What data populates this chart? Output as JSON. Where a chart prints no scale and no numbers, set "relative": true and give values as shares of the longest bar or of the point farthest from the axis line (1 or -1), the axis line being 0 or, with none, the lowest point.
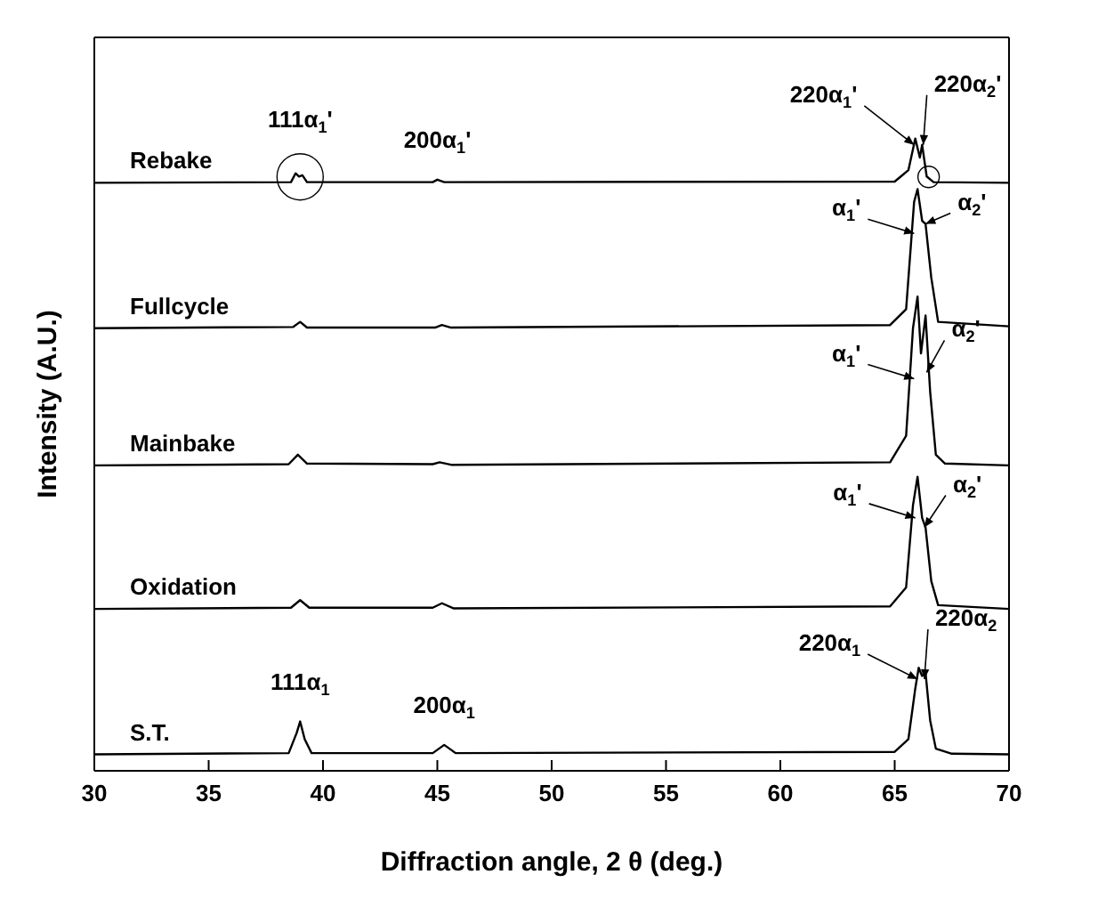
{
  "chart_data": {
    "type": "line",
    "relative": true,
    "xlabel": "Diffraction angle, 2 θ (deg.)",
    "ylabel": "Intensity (A.U.)",
    "xlim": [
      30,
      70
    ],
    "xticks": [
      30,
      35,
      40,
      45,
      50,
      55,
      60,
      65,
      70
    ],
    "marker": "none",
    "line_style": "solid",
    "series": [
      {
        "name": "Rebake",
        "color": "#000000",
        "x": [
          30,
          38.6,
          38.8,
          38.95,
          39.1,
          39.3,
          44.8,
          45.0,
          45.3,
          65.0,
          65.6,
          65.9,
          66.1,
          66.2,
          66.4,
          66.7,
          70
        ],
        "values": [
          0.93,
          0.931,
          0.945,
          0.94,
          0.942,
          0.931,
          0.931,
          0.935,
          0.931,
          0.932,
          0.95,
          1.0,
          0.97,
          0.99,
          0.94,
          0.931,
          0.93
        ]
      },
      {
        "name": "Fullcycle",
        "color": "#000000",
        "x": [
          30,
          38.7,
          39.0,
          39.3,
          44.9,
          45.2,
          45.6,
          64.8,
          65.5,
          65.85,
          66.0,
          66.2,
          66.35,
          66.6,
          66.9,
          70
        ],
        "values": [
          0.7,
          0.702,
          0.71,
          0.701,
          0.701,
          0.705,
          0.701,
          0.705,
          0.73,
          0.9,
          0.92,
          0.87,
          0.865,
          0.78,
          0.71,
          0.703
        ]
      },
      {
        "name": "Mainbake",
        "color": "#000000",
        "x": [
          30,
          38.5,
          38.9,
          39.3,
          44.8,
          45.1,
          45.6,
          64.8,
          65.5,
          65.8,
          66.0,
          66.15,
          66.35,
          66.55,
          66.8,
          67.2,
          70
        ],
        "values": [
          0.483,
          0.485,
          0.5,
          0.486,
          0.485,
          0.488,
          0.484,
          0.488,
          0.53,
          0.7,
          0.75,
          0.66,
          0.72,
          0.6,
          0.5,
          0.486,
          0.483
        ]
      },
      {
        "name": "Oxidation",
        "color": "#000000",
        "x": [
          30,
          38.6,
          39.0,
          39.4,
          44.8,
          45.2,
          45.7,
          64.8,
          65.5,
          65.8,
          66.0,
          66.2,
          66.35,
          66.6,
          66.9,
          70
        ],
        "values": [
          0.256,
          0.258,
          0.27,
          0.258,
          0.258,
          0.265,
          0.257,
          0.26,
          0.29,
          0.42,
          0.465,
          0.4,
          0.385,
          0.3,
          0.262,
          0.256
        ]
      },
      {
        "name": "S.T.",
        "color": "#000000",
        "x": [
          30,
          38.5,
          38.85,
          39.0,
          39.2,
          39.5,
          44.8,
          45.3,
          45.8,
          65.0,
          65.6,
          65.9,
          66.05,
          66.2,
          66.35,
          66.55,
          66.8,
          67.5,
          70
        ],
        "values": [
          0.026,
          0.028,
          0.06,
          0.078,
          0.05,
          0.028,
          0.028,
          0.041,
          0.028,
          0.03,
          0.05,
          0.13,
          0.163,
          0.15,
          0.155,
          0.08,
          0.035,
          0.027,
          0.026
        ]
      }
    ],
    "annotations": [
      {
        "text": "111α$_{1}$'",
        "x": 39.0,
        "y": 0.945
      },
      {
        "text": "200α$_{1}$'",
        "x": 45.0,
        "y": 0.935
      },
      {
        "text": "220α$_{1}$'",
        "x": 65.85,
        "y": 0.99
      },
      {
        "text": "220α$_{2}$'",
        "x": 66.25,
        "y": 0.99
      },
      {
        "text": "α$_{1}$'",
        "x": 65.85,
        "y": 0.85
      },
      {
        "text": "α$_{2}$'",
        "x": 66.35,
        "y": 0.865
      },
      {
        "text": "α$_{1}$'",
        "x": 65.85,
        "y": 0.62
      },
      {
        "text": "α$_{2}$'",
        "x": 66.4,
        "y": 0.63
      },
      {
        "text": "α$_{1}$'",
        "x": 65.9,
        "y": 0.4
      },
      {
        "text": "α$_{2}$'",
        "x": 66.3,
        "y": 0.385
      },
      {
        "text": "111α$_{1}$",
        "x": 39.0,
        "y": 0.078
      },
      {
        "text": "200α$_{1}$",
        "x": 45.3,
        "y": 0.041
      },
      {
        "text": "220α$_{1}$",
        "x": 66.0,
        "y": 0.145
      },
      {
        "text": "220α$_{2}$",
        "x": 66.3,
        "y": 0.145
      }
    ]
  }
}
